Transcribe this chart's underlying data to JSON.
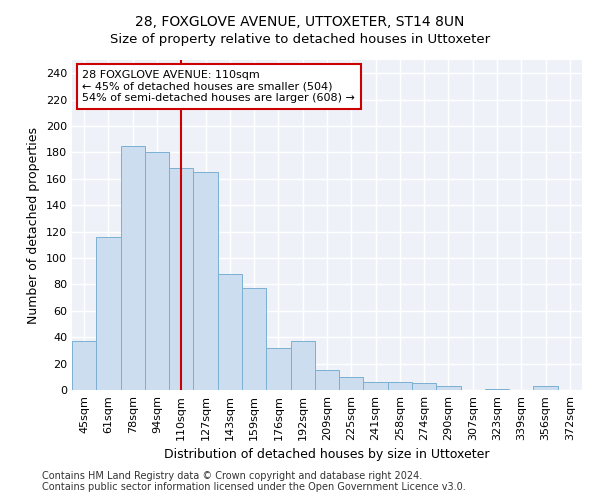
{
  "title": "28, FOXGLOVE AVENUE, UTTOXETER, ST14 8UN",
  "subtitle": "Size of property relative to detached houses in Uttoxeter",
  "xlabel": "Distribution of detached houses by size in Uttoxeter",
  "ylabel": "Number of detached properties",
  "categories": [
    "45sqm",
    "61sqm",
    "78sqm",
    "94sqm",
    "110sqm",
    "127sqm",
    "143sqm",
    "159sqm",
    "176sqm",
    "192sqm",
    "209sqm",
    "225sqm",
    "241sqm",
    "258sqm",
    "274sqm",
    "290sqm",
    "307sqm",
    "323sqm",
    "339sqm",
    "356sqm",
    "372sqm"
  ],
  "values": [
    37,
    116,
    185,
    180,
    168,
    165,
    88,
    77,
    32,
    37,
    15,
    10,
    6,
    6,
    5,
    3,
    0,
    1,
    0,
    3,
    0
  ],
  "bar_color": "#ccddf0",
  "bar_edge_color": "#7ab0d4",
  "vline_x_idx": 4,
  "vline_color": "#cc0000",
  "annotation_line1": "28 FOXGLOVE AVENUE: 110sqm",
  "annotation_line2": "← 45% of detached houses are smaller (504)",
  "annotation_line3": "54% of semi-detached houses are larger (608) →",
  "annotation_box_facecolor": "#ffffff",
  "annotation_box_edgecolor": "#cc0000",
  "ylim": [
    0,
    250
  ],
  "yticks": [
    0,
    20,
    40,
    60,
    80,
    100,
    120,
    140,
    160,
    180,
    200,
    220,
    240
  ],
  "footer_line1": "Contains HM Land Registry data © Crown copyright and database right 2024.",
  "footer_line2": "Contains public sector information licensed under the Open Government Licence v3.0.",
  "fig_facecolor": "#ffffff",
  "ax_facecolor": "#eef2f8",
  "grid_color": "#ffffff",
  "title_fontsize": 10,
  "axis_label_fontsize": 9,
  "tick_fontsize": 8,
  "annotation_fontsize": 8,
  "footer_fontsize": 7
}
